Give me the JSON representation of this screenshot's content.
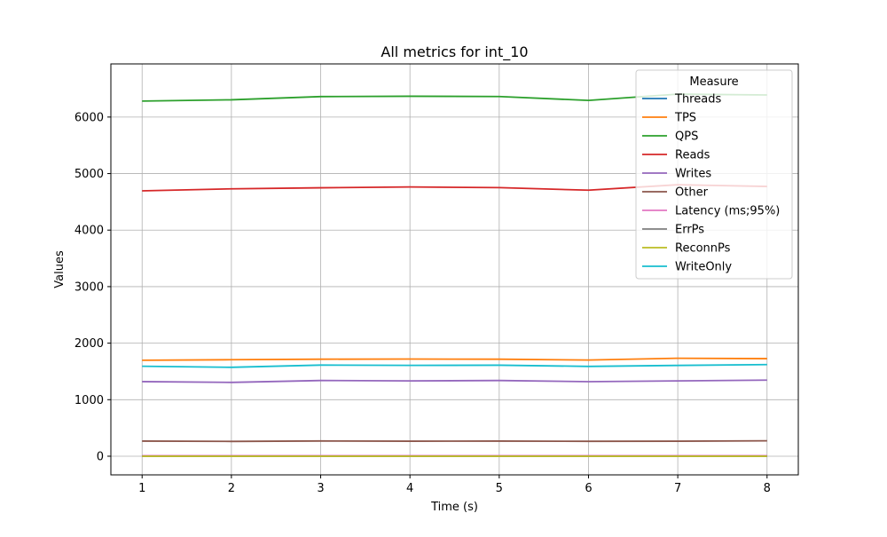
{
  "chart_data": {
    "type": "line",
    "title": "All metrics for int_10",
    "xlabel": "Time (s)",
    "ylabel": "Values",
    "x": [
      1,
      2,
      3,
      4,
      5,
      6,
      7,
      8
    ],
    "xlim": [
      0.65,
      8.35
    ],
    "ylim": [
      -330,
      6940
    ],
    "xticks": [
      1,
      2,
      3,
      4,
      5,
      6,
      7,
      8
    ],
    "yticks": [
      0,
      1000,
      2000,
      3000,
      4000,
      5000,
      6000
    ],
    "grid": true,
    "legend": {
      "title": "Measure",
      "placement": "top-right"
    },
    "series": [
      {
        "name": "Threads",
        "color": "#1f77b4",
        "values": [
          10,
          10,
          10,
          10,
          10,
          10,
          10,
          10
        ]
      },
      {
        "name": "TPS",
        "color": "#ff7f0e",
        "values": [
          1697,
          1707,
          1716,
          1719,
          1716,
          1702,
          1733,
          1726
        ]
      },
      {
        "name": "QPS",
        "color": "#2ca02c",
        "values": [
          6283,
          6305,
          6362,
          6368,
          6363,
          6294,
          6405,
          6390
        ]
      },
      {
        "name": "Reads",
        "color": "#d62728",
        "values": [
          4695,
          4730,
          4749,
          4763,
          4751,
          4706,
          4803,
          4772
        ]
      },
      {
        "name": "Writes",
        "color": "#9467bd",
        "values": [
          1320,
          1306,
          1339,
          1333,
          1339,
          1319,
          1332,
          1346
        ]
      },
      {
        "name": "Other",
        "color": "#8c564b",
        "values": [
          268,
          262,
          270,
          266,
          268,
          264,
          266,
          272
        ]
      },
      {
        "name": "Latency (ms;95%)",
        "color": "#e377c2",
        "values": [
          9,
          9,
          9,
          9,
          9,
          9,
          9,
          9
        ]
      },
      {
        "name": "ErrPs",
        "color": "#7f7f7f",
        "values": [
          0,
          0,
          0,
          0,
          0,
          0,
          0,
          0
        ]
      },
      {
        "name": "ReconnPs",
        "color": "#bcbd22",
        "values": [
          0,
          0,
          0,
          0,
          0,
          0,
          0,
          0
        ]
      },
      {
        "name": "WriteOnly",
        "color": "#17becf",
        "values": [
          1591,
          1573,
          1612,
          1607,
          1610,
          1589,
          1606,
          1621
        ]
      }
    ]
  }
}
